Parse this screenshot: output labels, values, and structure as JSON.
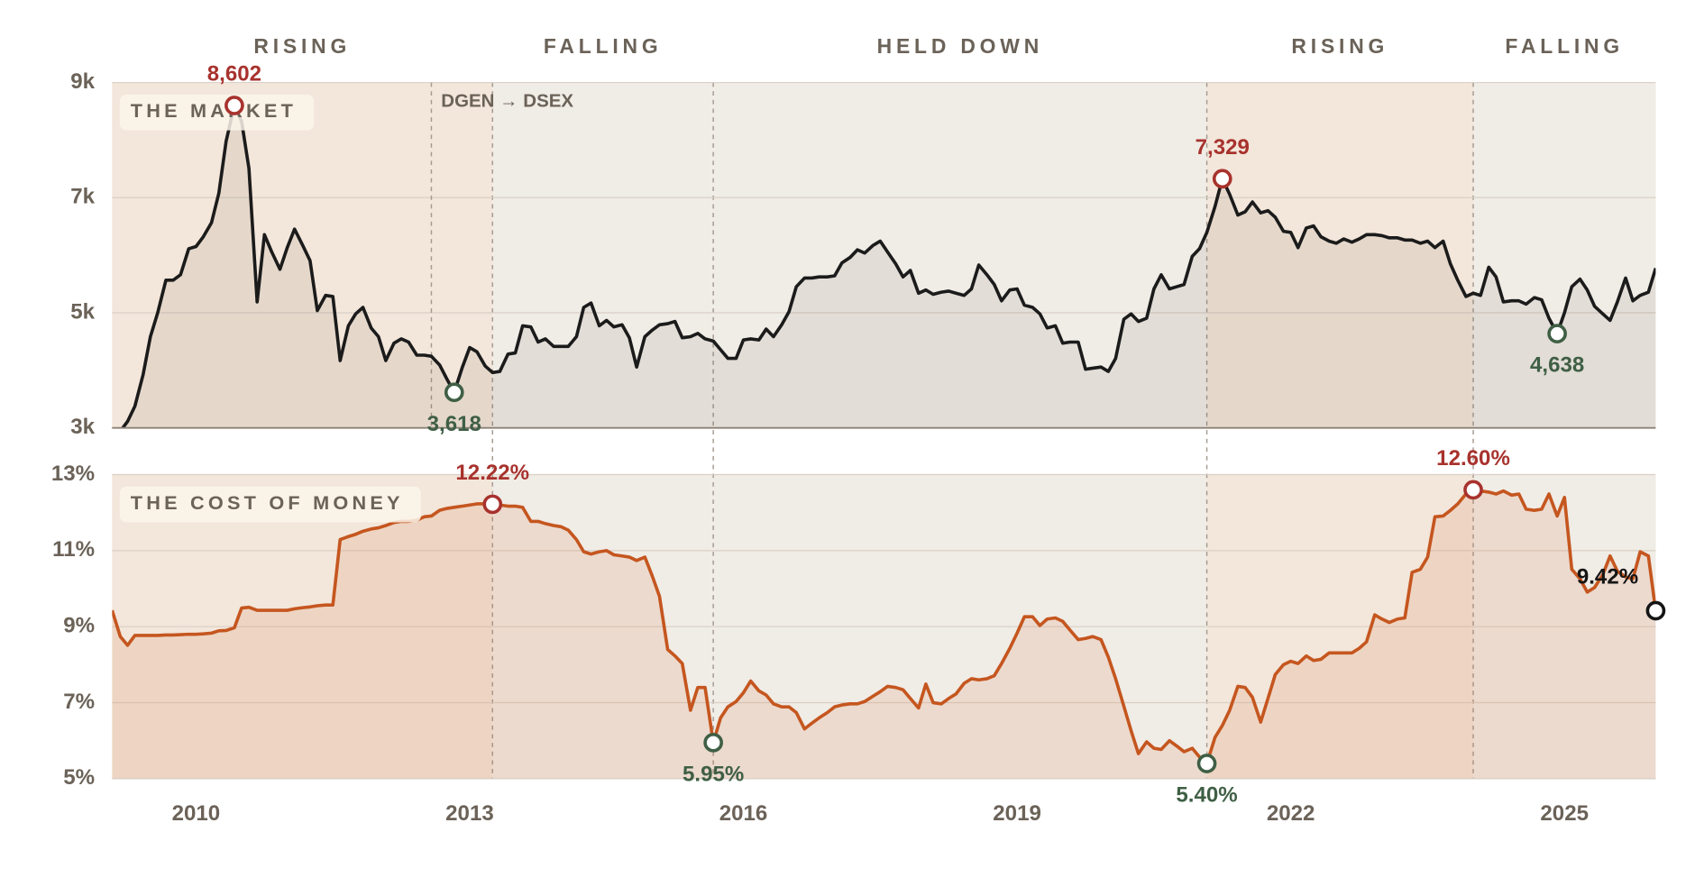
{
  "chart_data": {
    "type": "line",
    "xlim": [
      2009.08,
      2026.0
    ],
    "xticks": [
      2010,
      2013,
      2016,
      2019,
      2022,
      2025
    ],
    "grid": true,
    "phases": [
      {
        "label": "RISING",
        "end": 2013.25,
        "color": "#f3e6da"
      },
      {
        "label": "FALLING",
        "end": 2015.67,
        "color": "#f0ece6"
      },
      {
        "label": "HELD DOWN",
        "end": 2021.08,
        "color": "#f0ece6"
      },
      {
        "label": "RISING",
        "end": 2024.0,
        "color": "#f3e6da"
      },
      {
        "label": "FALLING",
        "end": 2026.0,
        "color": "#f0ece6"
      }
    ],
    "x": [
      2009.08,
      2009.17,
      2009.25,
      2009.33,
      2009.42,
      2009.5,
      2009.58,
      2009.67,
      2009.75,
      2009.83,
      2009.92,
      2010,
      2010.08,
      2010.17,
      2010.25,
      2010.33,
      2010.42,
      2010.5,
      2010.58,
      2010.67,
      2010.75,
      2010.83,
      2010.92,
      2011,
      2011.08,
      2011.17,
      2011.25,
      2011.33,
      2011.42,
      2011.5,
      2011.58,
      2011.67,
      2011.75,
      2011.83,
      2011.92,
      2012,
      2012.08,
      2012.17,
      2012.25,
      2012.33,
      2012.42,
      2012.5,
      2012.58,
      2012.67,
      2012.75,
      2012.83,
      2012.92,
      2013,
      2013.08,
      2013.17,
      2013.25,
      2013.33,
      2013.42,
      2013.5,
      2013.58,
      2013.67,
      2013.75,
      2013.83,
      2013.92,
      2014,
      2014.08,
      2014.17,
      2014.25,
      2014.33,
      2014.42,
      2014.5,
      2014.58,
      2014.67,
      2014.75,
      2014.83,
      2014.92,
      2015,
      2015.08,
      2015.17,
      2015.25,
      2015.33,
      2015.42,
      2015.5,
      2015.58,
      2015.67,
      2015.75,
      2015.83,
      2015.92,
      2016,
      2016.08,
      2016.17,
      2016.25,
      2016.33,
      2016.42,
      2016.5,
      2016.58,
      2016.67,
      2016.75,
      2016.83,
      2016.92,
      2017,
      2017.08,
      2017.17,
      2017.25,
      2017.33,
      2017.42,
      2017.5,
      2017.58,
      2017.67,
      2017.75,
      2017.83,
      2017.92,
      2018,
      2018.08,
      2018.17,
      2018.25,
      2018.33,
      2018.42,
      2018.5,
      2018.58,
      2018.67,
      2018.75,
      2018.83,
      2018.92,
      2019,
      2019.08,
      2019.17,
      2019.25,
      2019.33,
      2019.42,
      2019.5,
      2019.58,
      2019.67,
      2019.75,
      2019.83,
      2019.92,
      2020,
      2020.08,
      2020.17,
      2020.25,
      2020.33,
      2020.42,
      2020.5,
      2020.58,
      2020.67,
      2020.75,
      2020.83,
      2020.92,
      2021,
      2021.08,
      2021.17,
      2021.25,
      2021.33,
      2021.42,
      2021.5,
      2021.58,
      2021.67,
      2021.75,
      2021.83,
      2021.92,
      2022,
      2022.08,
      2022.17,
      2022.25,
      2022.33,
      2022.42,
      2022.5,
      2022.58,
      2022.67,
      2022.75,
      2022.83,
      2022.92,
      2023,
      2023.08,
      2023.17,
      2023.25,
      2023.33,
      2023.42,
      2023.5,
      2023.58,
      2023.67,
      2023.75,
      2023.83,
      2023.92,
      2024,
      2024.08,
      2024.17,
      2024.25,
      2024.33,
      2024.42,
      2024.5,
      2024.58,
      2024.67,
      2024.75,
      2024.83,
      2024.92,
      2025,
      2025.08,
      2025.17,
      2025.25,
      2025.33,
      2025.42,
      2025.5,
      2025.58,
      2025.67,
      2025.75,
      2025.83,
      2025.92,
      2026
    ],
    "panels": [
      {
        "title": "THE MARKET",
        "color": "#1b1b1b",
        "area": "rgba(70,55,40,0.08)",
        "ylim": [
          3000,
          9000
        ],
        "yticks": [
          {
            "value": 3000,
            "label": "3k"
          },
          {
            "value": 5000,
            "label": "5k"
          },
          {
            "value": 7000,
            "label": "7k"
          },
          {
            "value": 9000,
            "label": "9k"
          }
        ],
        "note": {
          "x": 2012.58,
          "label": "DGEN → DSEX"
        },
        "values": [
          2925,
          2943,
          3113,
          3377,
          3925,
          4585,
          5000,
          5566,
          5566,
          5660,
          6113,
          6151,
          6321,
          6566,
          7075,
          7981,
          8602,
          8321,
          7509,
          5189,
          6358,
          6057,
          5755,
          6132,
          6453,
          6170,
          5906,
          5038,
          5302,
          5283,
          4170,
          4774,
          4981,
          5094,
          4736,
          4585,
          4170,
          4472,
          4547,
          4491,
          4264,
          4264,
          4245,
          4094,
          3849,
          3618,
          4057,
          4396,
          4321,
          4075,
          3962,
          3981,
          4283,
          4302,
          4774,
          4755,
          4491,
          4547,
          4415,
          4415,
          4415,
          4585,
          5094,
          5170,
          4774,
          4868,
          4755,
          4792,
          4566,
          4057,
          4585,
          4698,
          4792,
          4811,
          4849,
          4566,
          4585,
          4642,
          4547,
          4509,
          4358,
          4208,
          4208,
          4528,
          4547,
          4528,
          4717,
          4585,
          4792,
          5019,
          5453,
          5604,
          5604,
          5623,
          5623,
          5642,
          5868,
          5962,
          6094,
          6038,
          6170,
          6245,
          6057,
          5849,
          5623,
          5736,
          5340,
          5396,
          5321,
          5358,
          5377,
          5340,
          5302,
          5415,
          5830,
          5660,
          5491,
          5208,
          5396,
          5415,
          5132,
          5094,
          4981,
          4736,
          4774,
          4472,
          4491,
          4491,
          4019,
          4038,
          4057,
          3981,
          4208,
          4887,
          4981,
          4849,
          4906,
          5415,
          5660,
          5415,
          5453,
          5491,
          5981,
          6113,
          6396,
          6849,
          7329,
          7057,
          6698,
          6755,
          6925,
          6736,
          6774,
          6660,
          6415,
          6396,
          6132,
          6472,
          6509,
          6321,
          6245,
          6208,
          6283,
          6226,
          6283,
          6358,
          6358,
          6340,
          6302,
          6302,
          6264,
          6264,
          6208,
          6245,
          6132,
          6245,
          5849,
          5566,
          5283,
          5340,
          5302,
          5792,
          5623,
          5189,
          5208,
          5208,
          5151,
          5264,
          5226,
          4906,
          4638,
          5000,
          5453,
          5585,
          5396,
          5113,
          4981,
          4868,
          5189,
          5604,
          5208,
          5302,
          5358,
          5774
        ],
        "annotations": [
          {
            "x": 2010.42,
            "value": 8602,
            "label": "8,602",
            "kind": "high"
          },
          {
            "x": 2012.83,
            "value": 3618,
            "label": "3,618",
            "kind": "low"
          },
          {
            "x": 2021.25,
            "value": 7329,
            "label": "7,329",
            "kind": "high"
          },
          {
            "x": 2024.92,
            "value": 4638,
            "label": "4,638",
            "kind": "low"
          }
        ]
      },
      {
        "title": "THE COST OF MONEY",
        "color": "#c5561f",
        "area": "rgba(205,100,45,0.13)",
        "ylim": [
          5,
          13
        ],
        "yticks": [
          {
            "value": 5,
            "label": "5%"
          },
          {
            "value": 7,
            "label": "7%"
          },
          {
            "value": 9,
            "label": "9%"
          },
          {
            "value": 11,
            "label": "11%"
          },
          {
            "value": 13,
            "label": "13%"
          }
        ],
        "values": [
          9.43,
          8.74,
          8.51,
          8.77,
          8.77,
          8.77,
          8.77,
          8.78,
          8.78,
          8.79,
          8.8,
          8.8,
          8.81,
          8.83,
          8.89,
          8.9,
          8.97,
          9.49,
          9.51,
          9.43,
          9.43,
          9.43,
          9.43,
          9.43,
          9.47,
          9.5,
          9.52,
          9.55,
          9.57,
          9.57,
          11.29,
          11.37,
          11.43,
          11.51,
          11.57,
          11.6,
          11.66,
          11.74,
          11.77,
          11.77,
          11.8,
          11.89,
          11.91,
          12.06,
          12.11,
          12.14,
          12.17,
          12.2,
          12.23,
          12.23,
          12.22,
          12.2,
          12.17,
          12.17,
          12.14,
          11.77,
          11.77,
          11.71,
          11.66,
          11.63,
          11.54,
          11.29,
          10.97,
          10.91,
          10.97,
          11.0,
          10.89,
          10.86,
          10.83,
          10.74,
          10.83,
          10.34,
          9.8,
          8.4,
          8.23,
          8.03,
          6.8,
          7.4,
          7.4,
          5.95,
          6.6,
          6.89,
          7.03,
          7.26,
          7.57,
          7.31,
          7.2,
          6.97,
          6.89,
          6.89,
          6.74,
          6.31,
          6.46,
          6.6,
          6.74,
          6.89,
          6.94,
          6.97,
          6.97,
          7.03,
          7.17,
          7.29,
          7.43,
          7.4,
          7.34,
          7.11,
          6.86,
          7.49,
          7.0,
          6.97,
          7.11,
          7.23,
          7.51,
          7.63,
          7.6,
          7.63,
          7.71,
          8.03,
          8.43,
          8.83,
          9.26,
          9.26,
          9.03,
          9.2,
          9.23,
          9.14,
          8.91,
          8.66,
          8.69,
          8.74,
          8.66,
          8.2,
          7.63,
          6.91,
          6.26,
          5.66,
          5.97,
          5.8,
          5.77,
          6.0,
          5.86,
          5.71,
          5.8,
          5.57,
          5.4,
          6.09,
          6.4,
          6.8,
          7.43,
          7.4,
          7.14,
          6.49,
          7.11,
          7.74,
          8.0,
          8.09,
          8.03,
          8.23,
          8.11,
          8.14,
          8.31,
          8.31,
          8.31,
          8.31,
          8.43,
          8.6,
          9.31,
          9.2,
          9.11,
          9.2,
          9.23,
          10.43,
          10.51,
          10.83,
          11.89,
          11.91,
          12.06,
          12.23,
          12.49,
          12.6,
          12.57,
          12.54,
          12.49,
          12.57,
          12.46,
          12.49,
          12.09,
          12.06,
          12.09,
          12.49,
          11.91,
          12.4,
          10.51,
          10.26,
          9.91,
          10.03,
          10.37,
          10.86,
          10.46,
          10.31,
          10.26,
          10.97,
          10.86,
          9.42
        ],
        "annotations": [
          {
            "x": 2013.25,
            "value": 12.22,
            "label": "12.22%",
            "kind": "high"
          },
          {
            "x": 2015.67,
            "value": 5.95,
            "label": "5.95%",
            "kind": "low"
          },
          {
            "x": 2021.08,
            "value": 5.4,
            "label": "5.40%",
            "kind": "low"
          },
          {
            "x": 2024.0,
            "value": 12.6,
            "label": "12.60%",
            "kind": "high"
          },
          {
            "x": 2026.0,
            "value": 9.42,
            "label": "9.42%",
            "kind": "latest"
          }
        ]
      }
    ]
  }
}
